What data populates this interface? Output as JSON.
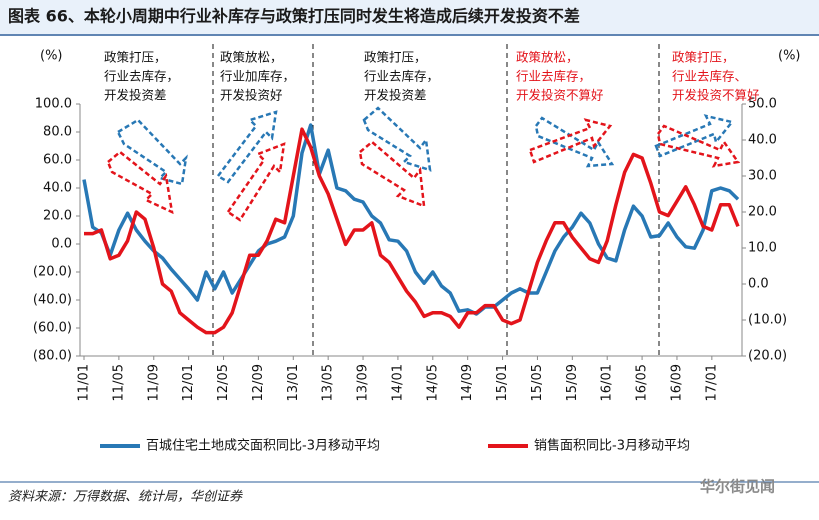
{
  "chart_data": {
    "type": "line",
    "title": "图表 66、本轮小周期中行业补库存与政策打压同时发生将造成后续开发投资不差",
    "source": "资料来源：万得数据、统计局，华创证券",
    "watermark": "华尔街见闻",
    "y_label": "(%)",
    "y2_label": "(%)",
    "categories": [
      "11/01",
      null,
      null,
      null,
      "11/05",
      null,
      null,
      null,
      "11/09",
      null,
      null,
      null,
      "12/01",
      null,
      null,
      null,
      "12/05",
      null,
      null,
      null,
      "12/09",
      null,
      null,
      null,
      "13/01",
      null,
      null,
      null,
      "13/05",
      null,
      null,
      null,
      "13/09",
      null,
      null,
      null,
      "14/01",
      null,
      null,
      null,
      "14/05",
      null,
      null,
      null,
      "14/09",
      null,
      null,
      null,
      "15/01",
      null,
      null,
      null,
      "15/05",
      null,
      null,
      null,
      "15/09",
      null,
      null,
      null,
      "16/01",
      null,
      null,
      null,
      "16/05",
      null,
      null,
      null,
      "16/09",
      null,
      null,
      null,
      "17/01",
      null,
      null,
      null
    ],
    "series": [
      {
        "name": "百城住宅土地成交面积同比-3月移动平均",
        "color": "#2878b5",
        "axis": "y",
        "values": [
          46,
          12,
          8,
          -8,
          10,
          22,
          10,
          2,
          -5,
          -10,
          -18,
          -25,
          -32,
          -40,
          -20,
          -32,
          -20,
          -35,
          -25,
          -15,
          -5,
          0,
          2,
          5,
          20,
          65,
          85,
          50,
          67,
          40,
          38,
          32,
          30,
          20,
          15,
          3,
          2,
          -5,
          -20,
          -28,
          -20,
          -30,
          -35,
          -48,
          -47,
          -50,
          -45,
          -45,
          -40,
          -35,
          -32,
          -35,
          -35,
          -20,
          -5,
          5,
          12,
          22,
          15,
          0,
          -10,
          -12,
          10,
          27,
          20,
          5,
          6,
          15,
          5,
          -2,
          -3,
          10,
          38,
          40,
          38,
          32
        ]
      },
      {
        "name": "销售面积同比-3月移动平均",
        "color": "#e3141b",
        "axis": "y2",
        "values": [
          14,
          14,
          15,
          7,
          8,
          12,
          20,
          18,
          10,
          0,
          -2,
          -8,
          -10,
          -12,
          -13.5,
          -13.5,
          -12,
          -8,
          0,
          8,
          8,
          12,
          18,
          17,
          30,
          43,
          38,
          30,
          25,
          18,
          11,
          15,
          15,
          17,
          8,
          6,
          2,
          -2,
          -5,
          -9,
          -8,
          -8,
          -9,
          -12,
          -8,
          -8,
          -6,
          -6,
          -10,
          -11,
          -10,
          -2,
          6,
          12,
          17,
          17,
          13,
          10,
          7,
          6,
          12,
          22,
          31,
          36,
          35,
          28,
          20,
          19,
          23,
          27,
          22,
          16,
          15,
          22,
          22,
          16
        ]
      }
    ],
    "ylim": [
      -80,
      100
    ],
    "yticks": [
      {
        "value": -80,
        "label": "(80.0)"
      },
      {
        "value": -60,
        "label": "(60.0)"
      },
      {
        "value": -40,
        "label": "(40.0)"
      },
      {
        "value": -20,
        "label": "(20.0)"
      },
      {
        "value": 0,
        "label": "0.0"
      },
      {
        "value": 20,
        "label": "20.0"
      },
      {
        "value": 40,
        "label": "40.0"
      },
      {
        "value": 60,
        "label": "60.0"
      },
      {
        "value": 80,
        "label": "80.0"
      },
      {
        "value": 100,
        "label": "100.0"
      }
    ],
    "y2lim": [
      -20,
      50
    ],
    "y2ticks": [
      {
        "value": -20,
        "label": "(20.0)"
      },
      {
        "value": -10,
        "label": "(10.0)"
      },
      {
        "value": 0,
        "label": "0.0"
      },
      {
        "value": 10,
        "label": "10.0"
      },
      {
        "value": 20,
        "label": "20.0"
      },
      {
        "value": 30,
        "label": "30.0"
      },
      {
        "value": 40,
        "label": "40.0"
      },
      {
        "value": 50,
        "label": "50.0"
      }
    ],
    "grid": false,
    "legend": "bottom",
    "annotations": [
      {
        "lines": [
          "政策打压，",
          "行业去库存，",
          "开发投资差"
        ],
        "color": "#111111"
      },
      {
        "lines": [
          "政策放松，",
          "行业加库存，",
          "开发投资好"
        ],
        "color": "#111111"
      },
      {
        "lines": [
          "政策打压，",
          "行业去库存，",
          "开发投资差"
        ],
        "color": "#111111"
      },
      {
        "lines": [
          "政策放松，",
          "行业去库存，",
          "开发投资不算好"
        ],
        "color": "#e3141b"
      },
      {
        "lines": [
          "政策打压，",
          "行业去库存、",
          "开发投资不算好"
        ],
        "color": "#e3141b"
      }
    ]
  }
}
